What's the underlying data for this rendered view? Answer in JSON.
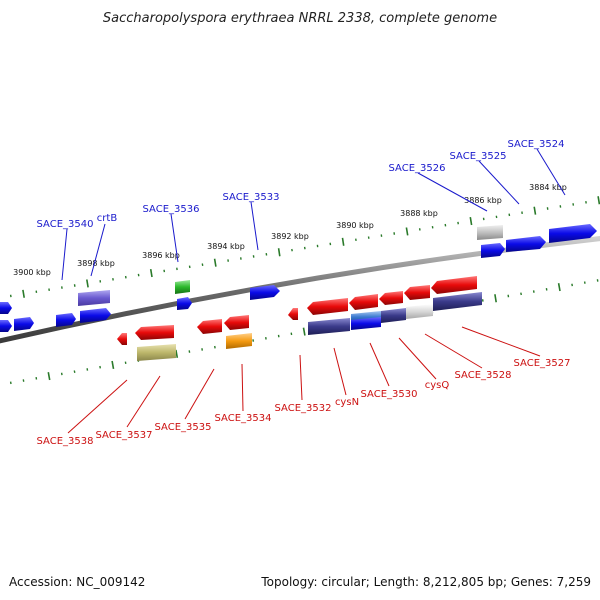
{
  "title": "Saccharopolyspora erythraea NRRL 2338, complete genome",
  "footer": {
    "accession": "Accession: NC_009142",
    "summary": "Topology: circular; Length: 8,212,805 bp; Genes: 7,259"
  },
  "colors": {
    "forward_label": "#1a1acc",
    "reverse_label": "#cc1111",
    "backbone": "#888888",
    "scale_ticks": "#2a7a2a",
    "forward_gene": "#0a0ae8",
    "reverse_gene": "#e80a0a"
  },
  "scale_labels": [
    "3900 kbp",
    "3898 kbp",
    "3896 kbp",
    "3894 kbp",
    "3892 kbp",
    "3890 kbp",
    "3888 kbp",
    "3886 kbp",
    "3884 kbp"
  ],
  "forward_labels": [
    "SACE_3540",
    "crtB",
    "SACE_3536",
    "SACE_3533",
    "SACE_3526",
    "SACE_3525",
    "SACE_3524"
  ],
  "reverse_labels": [
    "SACE_3538",
    "SACE_3537",
    "SACE_3535",
    "SACE_3534",
    "SACE_3532",
    "cysN",
    "SACE_3530",
    "cysQ",
    "SACE_3528",
    "SACE_3527"
  ]
}
